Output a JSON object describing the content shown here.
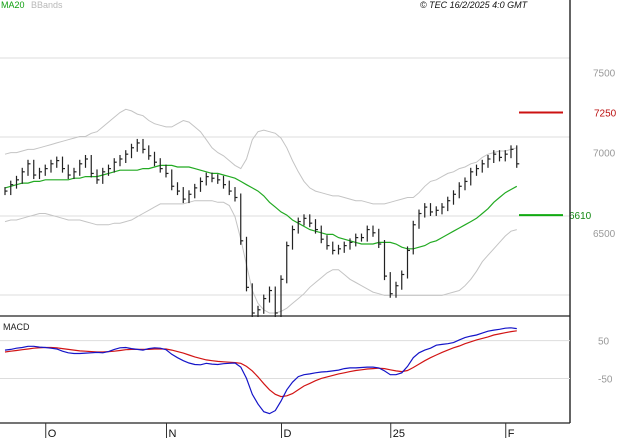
{
  "header": {
    "legend_ma": "MA20",
    "legend_bbands": "BBands",
    "copyright": "© TEC 16/2/2025 4:0 GMT"
  },
  "colors": {
    "ma": "#22aa22",
    "bbands": "#c4c4c4",
    "price": "#222222",
    "resistance": "#cc1111",
    "support": "#11aa11",
    "macd": "#1414c8",
    "signal": "#d21414",
    "grid": "#dddddd",
    "frame": "#222222"
  },
  "chart_data": [
    {
      "type": "bar",
      "title": "",
      "y_ticks": [
        "7500",
        "7000",
        "6500"
      ],
      "y_tick_values": [
        7500,
        7000,
        6500
      ],
      "ylim": [
        6000,
        7870
      ],
      "x_ticks": [
        {
          "label": "O",
          "index": 7
        },
        {
          "label": "N",
          "index": 28
        },
        {
          "label": "D",
          "index": 48
        },
        {
          "label": "25",
          "index": 67
        },
        {
          "label": "F",
          "index": 87
        }
      ],
      "levels": [
        {
          "name": "resistance",
          "label": "7250",
          "value": 7250
        },
        {
          "name": "support",
          "label": "6610",
          "value": 6610
        }
      ],
      "series": [
        {
          "name": "MA20",
          "values": [
            6780,
            6790,
            6800,
            6810,
            6810,
            6820,
            6820,
            6830,
            6830,
            6830,
            6830,
            6830,
            6840,
            6840,
            6850,
            6850,
            6850,
            6860,
            6870,
            6880,
            6890,
            6890,
            6890,
            6890,
            6900,
            6900,
            6910,
            6920,
            6920,
            6920,
            6910,
            6910,
            6910,
            6900,
            6890,
            6880,
            6870,
            6870,
            6860,
            6850,
            6840,
            6820,
            6800,
            6780,
            6760,
            6730,
            6690,
            6660,
            6630,
            6610,
            6580,
            6560,
            6540,
            6520,
            6510,
            6500,
            6490,
            6490,
            6470,
            6460,
            6450,
            6440,
            6430,
            6430,
            6430,
            6440,
            6440,
            6440,
            6430,
            6410,
            6400,
            6400,
            6410,
            6420,
            6440,
            6450,
            6470,
            6490,
            6510,
            6530,
            6550,
            6570,
            6590,
            6620,
            6650,
            6690,
            6720,
            6750,
            6770,
            6790
          ]
        },
        {
          "name": "BBands",
          "values": [
            6990,
            7000,
            7000,
            7010,
            7020,
            7020,
            7030,
            7040,
            7050,
            7060,
            7070,
            7080,
            7090,
            7100,
            7100,
            7120,
            7130,
            7160,
            7190,
            7220,
            7250,
            7270,
            7260,
            7240,
            7230,
            7200,
            7180,
            7170,
            7160,
            7160,
            7180,
            7200,
            7190,
            7160,
            7130,
            7080,
            7030,
            7000,
            6980,
            6950,
            6920,
            6900,
            6960,
            7080,
            7130,
            7140,
            7130,
            7120,
            7090,
            7030,
            6950,
            6880,
            6820,
            6780,
            6760,
            6750,
            6740,
            6730,
            6730,
            6720,
            6710,
            6700,
            6700,
            6690,
            6680,
            6680,
            6680,
            6690,
            6700,
            6710,
            6720,
            6720,
            6750,
            6790,
            6820,
            6830,
            6850,
            6870,
            6880,
            6900,
            6910,
            6930,
            6940,
            6970,
            6990,
            7000,
            7010,
            7010,
            7020,
            7030
          ]
        },
        {
          "name": "BBands lower",
          "values": [
            6570,
            6580,
            6580,
            6590,
            6600,
            6610,
            6620,
            6620,
            6610,
            6600,
            6590,
            6580,
            6580,
            6580,
            6570,
            6560,
            6550,
            6550,
            6550,
            6560,
            6560,
            6570,
            6580,
            6600,
            6620,
            6640,
            6660,
            6680,
            6680,
            6680,
            6680,
            6680,
            6690,
            6700,
            6700,
            6700,
            6700,
            6690,
            6690,
            6670,
            6600,
            6460,
            6300,
            6140,
            6060,
            6020,
            6000,
            6000,
            6010,
            6030,
            6060,
            6090,
            6120,
            6160,
            6190,
            6220,
            6250,
            6270,
            6270,
            6240,
            6210,
            6190,
            6170,
            6150,
            6130,
            6120,
            6110,
            6110,
            6110,
            6110,
            6110,
            6110,
            6110,
            6110,
            6110,
            6110,
            6110,
            6120,
            6130,
            6140,
            6170,
            6210,
            6260,
            6320,
            6360,
            6400,
            6440,
            6480,
            6510,
            6520
          ]
        },
        {
          "name": "Price",
          "values": [
            6760,
            6800,
            6830,
            6880,
            6930,
            6860,
            6880,
            6900,
            6930,
            6950,
            6900,
            6860,
            6880,
            6930,
            6960,
            6870,
            6830,
            6880,
            6900,
            6940,
            6960,
            6990,
            7030,
            7060,
            7020,
            6980,
            6940,
            6900,
            6870,
            6790,
            6760,
            6710,
            6740,
            6780,
            6820,
            6850,
            6840,
            6830,
            6800,
            6760,
            6720,
            6450,
            6160,
            6000,
            6020,
            6090,
            6140,
            6000,
            6210,
            6420,
            6520,
            6570,
            6590,
            6560,
            6520,
            6460,
            6420,
            6390,
            6400,
            6420,
            6440,
            6470,
            6470,
            6520,
            6500,
            6430,
            6230,
            6120,
            6170,
            6240,
            6390,
            6550,
            6620,
            6660,
            6630,
            6640,
            6660,
            6700,
            6740,
            6790,
            6820,
            6880,
            6900,
            6930,
            6960,
            6990,
            6970,
            6990,
            7020,
            6930
          ]
        }
      ]
    },
    {
      "type": "line",
      "title": "MACD",
      "y_ticks": [
        "50",
        "-50"
      ],
      "y_tick_values": [
        50,
        -50
      ],
      "ylim": [
        -160,
        110
      ],
      "series": [
        {
          "name": "MACD",
          "values": [
            25,
            27,
            30,
            32,
            35,
            35,
            33,
            32,
            30,
            28,
            22,
            18,
            16,
            16,
            17,
            18,
            19,
            18,
            21,
            27,
            31,
            32,
            29,
            27,
            25,
            29,
            31,
            30,
            26,
            14,
            5,
            -3,
            -9,
            -13,
            -14,
            -10,
            -12,
            -13,
            -11,
            -10,
            -9,
            -20,
            -50,
            -92,
            -118,
            -138,
            -143,
            -135,
            -110,
            -80,
            -60,
            -45,
            -40,
            -38,
            -35,
            -33,
            -32,
            -30,
            -28,
            -24,
            -22,
            -22,
            -21,
            -20,
            -20,
            -22,
            -30,
            -40,
            -40,
            -35,
            -18,
            5,
            18,
            25,
            30,
            38,
            40,
            42,
            45,
            52,
            58,
            62,
            65,
            70,
            75,
            78,
            80,
            83,
            84,
            82
          ]
        },
        {
          "name": "Signal",
          "values": [
            20,
            22,
            24,
            26,
            28,
            30,
            31,
            32,
            32,
            31,
            29,
            27,
            25,
            23,
            22,
            21,
            20,
            20,
            21,
            22,
            24,
            26,
            27,
            27,
            27,
            27,
            28,
            28,
            28,
            25,
            21,
            17,
            12,
            7,
            3,
            -1,
            -3,
            -5,
            -6,
            -7,
            -8,
            -10,
            -18,
            -30,
            -46,
            -64,
            -80,
            -92,
            -98,
            -96,
            -90,
            -80,
            -70,
            -63,
            -56,
            -50,
            -46,
            -42,
            -38,
            -35,
            -32,
            -29,
            -27,
            -25,
            -24,
            -23,
            -24,
            -27,
            -30,
            -32,
            -29,
            -21,
            -12,
            -3,
            5,
            12,
            19,
            25,
            31,
            36,
            42,
            47,
            52,
            56,
            60,
            65,
            68,
            71,
            74,
            76
          ]
        }
      ]
    }
  ]
}
